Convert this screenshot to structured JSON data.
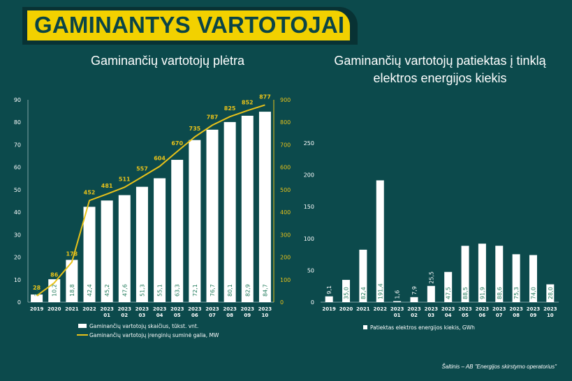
{
  "header": {
    "title": "GAMINANTYS VARTOTOJAI"
  },
  "colors": {
    "background": "#0c4a4c",
    "accent": "#f2d100",
    "bar": "#ffffff",
    "bar_label": "#1f7a5a",
    "line": "#e8c21a"
  },
  "chart_data": [
    {
      "type": "bar",
      "title": "Gaminančių vartotojų plėtra",
      "categories": [
        [
          "2019"
        ],
        [
          "2020"
        ],
        [
          "2021"
        ],
        [
          "2022"
        ],
        [
          "2023",
          "01"
        ],
        [
          "2023",
          "02"
        ],
        [
          "2023",
          "03"
        ],
        [
          "2023",
          "04"
        ],
        [
          "2023",
          "05"
        ],
        [
          "2023",
          "06"
        ],
        [
          "2023",
          "07"
        ],
        [
          "2023",
          "08"
        ],
        [
          "2023",
          "09"
        ],
        [
          "2023",
          "10"
        ]
      ],
      "ylim": [
        0,
        90
      ],
      "yticks": [
        "0",
        "10",
        "20",
        "30",
        "40",
        "50",
        "60",
        "70",
        "80",
        "90"
      ],
      "y2lim": [
        0,
        900
      ],
      "y2ticks": [
        "0",
        "100",
        "200",
        "300",
        "400",
        "500",
        "600",
        "700",
        "800",
        "900"
      ],
      "series": [
        {
          "name": "Gaminančių vartotojų skaičius, tūkst. vnt.",
          "kind": "bar",
          "values": [
            3.4,
            10.2,
            18.8,
            42.4,
            45.2,
            47.6,
            51.3,
            55.1,
            63.3,
            72.1,
            76.7,
            80.1,
            82.9,
            84.7
          ],
          "labels": [
            "3,4",
            "10,2",
            "18,8",
            "42,4",
            "45,2",
            "47,6",
            "51,3",
            "55,1",
            "63,3",
            "72,1",
            "76,7",
            "80,1",
            "82,9",
            "84,7"
          ]
        },
        {
          "name": "Gaminančių vartotojų įrenginių suminė galia, MW",
          "kind": "line",
          "axis": "right",
          "values": [
            28,
            86,
            178,
            452,
            481,
            511,
            557,
            604,
            670,
            735,
            787,
            825,
            852,
            877
          ],
          "labels": [
            "28",
            "86",
            "178",
            "452",
            "481",
            "511",
            "557",
            "604",
            "670",
            "735",
            "787",
            "825",
            "852",
            "877"
          ]
        }
      ],
      "legend_position": "bottom"
    },
    {
      "type": "bar",
      "title": "Gaminančių vartotojų patiektas į tinklą elektros energijos kiekis",
      "categories": [
        [
          "2019"
        ],
        [
          "2020"
        ],
        [
          "2021"
        ],
        [
          "2022"
        ],
        [
          "2023",
          "01"
        ],
        [
          "2023",
          "02"
        ],
        [
          "2023",
          "03"
        ],
        [
          "2023",
          "04"
        ],
        [
          "2023",
          "05"
        ],
        [
          "2023",
          "06"
        ],
        [
          "2023",
          "07"
        ],
        [
          "2023",
          "08"
        ],
        [
          "2023",
          "09"
        ],
        [
          "2023",
          "10"
        ]
      ],
      "ylim": [
        0,
        250
      ],
      "yticks": [
        "0",
        "50",
        "100",
        "150",
        "200",
        "250"
      ],
      "series": [
        {
          "name": "Patiektas elektros energijos kiekis, GWh",
          "kind": "bar",
          "values": [
            9.1,
            35.0,
            82.4,
            191.4,
            1.6,
            7.9,
            25.5,
            47.5,
            88.5,
            91.9,
            88.6,
            75.3,
            74.0,
            28.0
          ],
          "labels": [
            "9,1",
            "35,0",
            "82,4",
            "191,4",
            "1,6",
            "7,9",
            "25,5",
            "47,5",
            "88,5",
            "91,9",
            "88,6",
            "75,3",
            "74,0",
            "28,0"
          ]
        }
      ],
      "legend_position": "bottom"
    }
  ],
  "source_note": "Šaltinis – AB \"Energijos skirstymo operatorius\""
}
